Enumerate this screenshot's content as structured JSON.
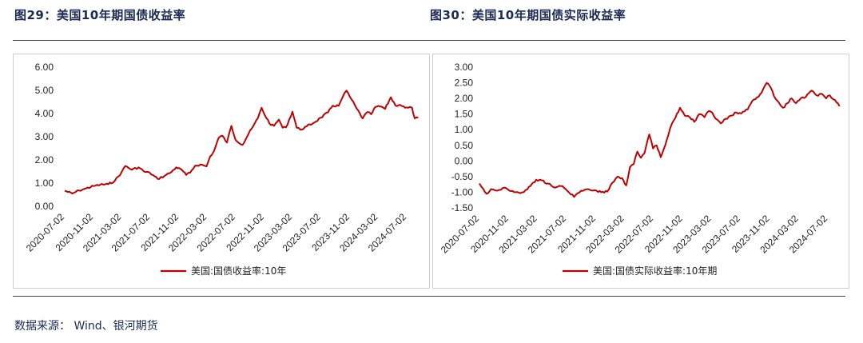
{
  "titles": {
    "left": "图29：美国10年期国债收益率",
    "right": "图30：美国10年期国债实际收益率"
  },
  "source": "数据来源： Wind、银河期货",
  "colors": {
    "series": "#c00000",
    "rule": "#444444",
    "title": "#1a2a55"
  },
  "chart_data": [
    {
      "type": "line",
      "y_ticks": [
        "6.00",
        "5.00",
        "4.00",
        "3.00",
        "2.00",
        "1.00",
        "0.00"
      ],
      "ylim": [
        0,
        6
      ],
      "x_ticks": [
        "2020-07-02",
        "2020-11-02",
        "2021-03-02",
        "2021-07-02",
        "2021-11-02",
        "2022-03-02",
        "2022-07-02",
        "2022-11-02",
        "2023-03-02",
        "2023-07-02",
        "2023-11-02",
        "2024-03-02",
        "2024-07-02"
      ],
      "series": [
        {
          "name": "美国:国债收益率:10年",
          "x": [
            "2020-07-02",
            "2020-08-03",
            "2020-09-01",
            "2020-10-01",
            "2020-11-02",
            "2020-12-01",
            "2021-01-04",
            "2021-02-01",
            "2021-03-01",
            "2021-03-18",
            "2021-04-15",
            "2021-05-13",
            "2021-06-10",
            "2021-07-01",
            "2021-08-03",
            "2021-09-01",
            "2021-10-01",
            "2021-10-21",
            "2021-11-15",
            "2021-12-03",
            "2021-12-20",
            "2022-01-10",
            "2022-02-01",
            "2022-02-28",
            "2022-03-15",
            "2022-04-01",
            "2022-04-20",
            "2022-05-06",
            "2022-05-26",
            "2022-06-14",
            "2022-07-01",
            "2022-08-01",
            "2022-08-25",
            "2022-09-15",
            "2022-10-05",
            "2022-10-21",
            "2022-11-10",
            "2022-12-01",
            "2022-12-13",
            "2023-01-03",
            "2023-01-19",
            "2023-02-02",
            "2023-03-02",
            "2023-03-20",
            "2023-04-05",
            "2023-05-01",
            "2023-06-01",
            "2023-07-01",
            "2023-08-01",
            "2023-08-21",
            "2023-09-15",
            "2023-10-02",
            "2023-10-19",
            "2023-11-01",
            "2023-12-01",
            "2023-12-27",
            "2024-01-15",
            "2024-02-01",
            "2024-02-20",
            "2024-03-15",
            "2024-04-01",
            "2024-04-25",
            "2024-05-15",
            "2024-06-03",
            "2024-06-25",
            "2024-07-08",
            "2024-07-25",
            "2024-08-05",
            "2024-08-20"
          ],
          "values": [
            0.67,
            0.55,
            0.68,
            0.77,
            0.87,
            0.93,
            0.95,
            1.1,
            1.45,
            1.74,
            1.58,
            1.68,
            1.48,
            1.44,
            1.18,
            1.31,
            1.48,
            1.68,
            1.56,
            1.35,
            1.45,
            1.75,
            1.8,
            1.72,
            2.14,
            2.39,
            2.94,
            3.05,
            2.75,
            3.47,
            2.88,
            2.65,
            3.1,
            3.45,
            3.8,
            4.25,
            3.81,
            3.5,
            3.47,
            3.74,
            3.39,
            3.4,
            4.08,
            3.39,
            3.3,
            3.44,
            3.6,
            3.82,
            4.05,
            4.34,
            4.33,
            4.7,
            4.99,
            4.75,
            4.22,
            3.79,
            4.06,
            3.97,
            4.29,
            4.3,
            4.2,
            4.7,
            4.35,
            4.38,
            4.25,
            4.25,
            4.25,
            3.79,
            3.82
          ]
        }
      ]
    },
    {
      "type": "line",
      "y_ticks": [
        "3.00",
        "2.50",
        "2.00",
        "1.50",
        "1.00",
        "0.50",
        "0.00",
        "-0.50",
        "-1.00",
        "-1.50"
      ],
      "ylim": [
        -1.5,
        3
      ],
      "x_ticks": [
        "2020-07-02",
        "2020-11-02",
        "2021-03-02",
        "2021-07-02",
        "2021-11-02",
        "2022-03-02",
        "2022-07-02",
        "2022-11-02",
        "2023-03-02",
        "2023-07-02",
        "2023-11-02",
        "2024-03-02",
        "2024-07-02"
      ],
      "series": [
        {
          "name": "美国:国债实际收益率:10年期",
          "x": [
            "2020-07-02",
            "2020-08-01",
            "2020-08-20",
            "2020-09-15",
            "2020-10-15",
            "2020-11-05",
            "2020-12-01",
            "2021-01-04",
            "2021-02-01",
            "2021-02-25",
            "2021-03-20",
            "2021-04-15",
            "2021-05-15",
            "2021-06-15",
            "2021-07-05",
            "2021-08-03",
            "2021-09-01",
            "2021-10-01",
            "2021-11-05",
            "2021-11-25",
            "2021-12-20",
            "2022-01-10",
            "2022-02-01",
            "2022-02-20",
            "2022-03-10",
            "2022-03-25",
            "2022-04-10",
            "2022-04-25",
            "2022-05-10",
            "2022-05-25",
            "2022-06-14",
            "2022-06-30",
            "2022-07-15",
            "2022-08-01",
            "2022-08-20",
            "2022-09-10",
            "2022-09-25",
            "2022-10-21",
            "2022-11-10",
            "2022-12-01",
            "2022-12-20",
            "2023-01-10",
            "2023-02-01",
            "2023-02-20",
            "2023-03-05",
            "2023-03-20",
            "2023-04-10",
            "2023-05-01",
            "2023-05-25",
            "2023-06-15",
            "2023-07-05",
            "2023-08-01",
            "2023-08-21",
            "2023-09-15",
            "2023-10-05",
            "2023-10-20",
            "2023-11-05",
            "2023-11-25",
            "2023-12-15",
            "2023-12-27",
            "2024-01-15",
            "2024-02-01",
            "2024-02-20",
            "2024-03-10",
            "2024-04-01",
            "2024-04-25",
            "2024-05-15",
            "2024-06-05",
            "2024-06-25",
            "2024-07-10",
            "2024-08-01",
            "2024-08-20"
          ],
          "values": [
            -0.72,
            -1.05,
            -0.9,
            -0.95,
            -0.85,
            -0.95,
            -1.0,
            -1.0,
            -0.8,
            -0.6,
            -0.62,
            -0.72,
            -0.85,
            -0.8,
            -0.95,
            -1.15,
            -0.95,
            -0.9,
            -0.95,
            -1.0,
            -0.98,
            -0.7,
            -0.5,
            -0.55,
            -0.78,
            -0.2,
            -0.1,
            0.3,
            0.1,
            0.25,
            0.85,
            0.4,
            0.5,
            0.12,
            0.5,
            1.05,
            1.3,
            1.7,
            1.45,
            1.4,
            1.25,
            1.5,
            1.4,
            1.6,
            1.55,
            1.35,
            1.2,
            1.35,
            1.45,
            1.55,
            1.52,
            1.65,
            1.93,
            2.05,
            2.3,
            2.5,
            2.35,
            2.0,
            1.8,
            1.7,
            1.85,
            2.0,
            1.85,
            2.0,
            2.05,
            2.25,
            2.1,
            2.15,
            2.0,
            2.1,
            1.95,
            1.75
          ]
        }
      ]
    }
  ]
}
